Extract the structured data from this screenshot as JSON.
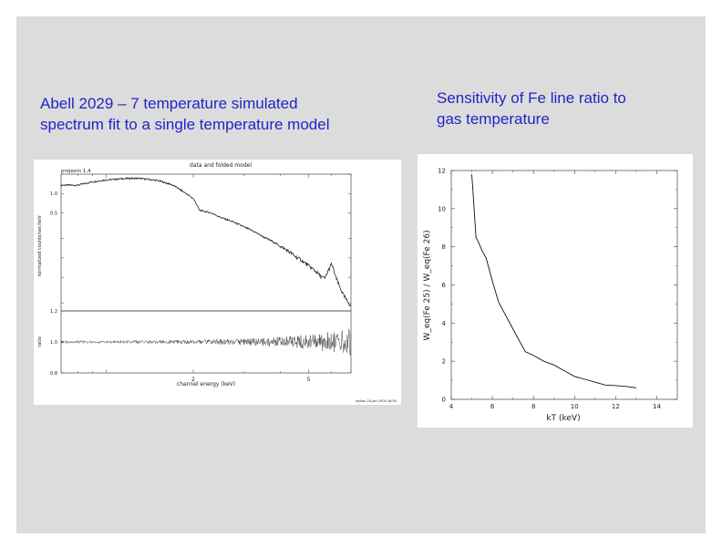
{
  "captions": {
    "left_line1": "Abell 2029 – 7 temperature simulated",
    "left_line2": "spectrum fit to a single temperature model",
    "right_line1": "Sensitivity of Fe line ratio to",
    "right_line2": "gas temperature"
  },
  "chart_data": [
    {
      "type": "line",
      "title": "data and folded model",
      "label_top_left": "projexin 1.4",
      "footer": "adrian 20-Jan 2004 16:50",
      "xscale": "log",
      "xlim": [
        0.7,
        7.0
      ],
      "xlabel": "channel energy (keV)",
      "xticks": [
        2,
        5
      ],
      "top_panel": {
        "ylabel": "normalized counts/sec/keV",
        "yscale": "log",
        "ylim": [
          0.015,
          2.0
        ],
        "ytick_labels": [
          "0.5",
          "1.0"
        ],
        "series": [
          {
            "name": "data and folded model",
            "x": [
              0.8,
              0.9,
              1.0,
              1.1,
              1.2,
              1.3,
              1.5,
              1.7,
              1.8,
              1.9,
              2.0,
              2.1,
              2.3,
              2.5,
              3.0,
              3.5,
              4.0,
              4.5,
              5.0,
              5.5,
              5.7,
              6.0,
              6.2,
              6.4,
              6.6,
              6.8,
              7.0
            ],
            "y": [
              1.35,
              1.52,
              1.63,
              1.68,
              1.72,
              1.72,
              1.6,
              1.35,
              1.15,
              0.98,
              0.83,
              0.55,
              0.5,
              0.42,
              0.3,
              0.21,
              0.15,
              0.105,
              0.075,
              0.052,
              0.048,
              0.08,
              0.05,
              0.035,
              0.026,
              0.021,
              0.018
            ]
          }
        ]
      },
      "bottom_panel": {
        "ylabel": "ratio",
        "ylim": [
          0.8,
          1.2
        ],
        "ytick_labels": [
          "1.2",
          "1.0",
          "0.8"
        ],
        "series": [
          {
            "name": "ratio",
            "x": [
              0.8,
              1.0,
              1.5,
              2.0,
              3.0,
              4.0,
              5.0,
              6.0,
              7.0
            ],
            "y": [
              1.0,
              1.0,
              1.0,
              1.0,
              1.0,
              1.0,
              1.0,
              1.0,
              1.0
            ],
            "scatter_amplitude": [
              0.004,
              0.004,
              0.005,
              0.006,
              0.01,
              0.015,
              0.022,
              0.03,
              0.04
            ]
          }
        ]
      }
    },
    {
      "type": "line",
      "title": "",
      "xlabel": "kT (keV)",
      "ylabel": "W_eq(Fe 25) / W_eq(Fe 26)",
      "xlim": [
        4,
        15
      ],
      "ylim": [
        0,
        12
      ],
      "xticks": [
        4,
        6,
        8,
        10,
        12,
        14
      ],
      "yticks": [
        0,
        2,
        4,
        6,
        8,
        10,
        12
      ],
      "series": [
        {
          "name": "Fe line ratio",
          "x": [
            5.0,
            5.05,
            5.1,
            5.2,
            5.3,
            5.5,
            5.7,
            6.0,
            6.3,
            6.7,
            7.2,
            7.6,
            8.0,
            8.5,
            9.0,
            9.5,
            10.0,
            10.5,
            11.0,
            11.5,
            12.0,
            12.5,
            13.0
          ],
          "y": [
            11.8,
            11.0,
            10.2,
            8.5,
            8.3,
            7.8,
            7.4,
            6.2,
            5.1,
            4.3,
            3.3,
            2.5,
            2.3,
            2.0,
            1.8,
            1.5,
            1.2,
            1.05,
            0.9,
            0.75,
            0.72,
            0.68,
            0.6
          ]
        }
      ]
    }
  ]
}
